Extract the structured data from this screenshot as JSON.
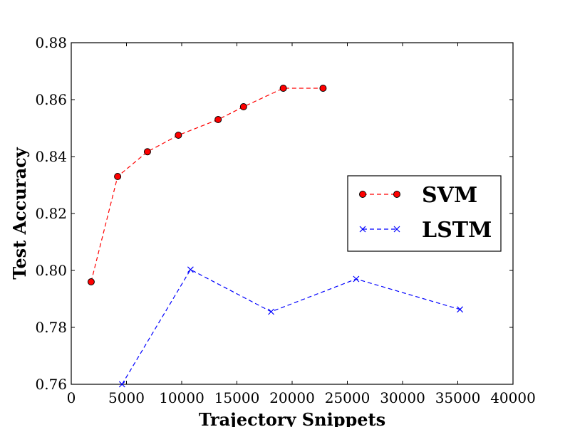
{
  "chart_data": {
    "type": "line",
    "xlabel": "Trajectory Snippets",
    "ylabel": "Test Accuracy",
    "xlim": [
      0,
      40000
    ],
    "ylim": [
      0.76,
      0.88
    ],
    "x_ticks": [
      "0",
      "5000",
      "10000",
      "15000",
      "20000",
      "25000",
      "30000",
      "35000",
      "40000"
    ],
    "y_ticks": [
      "0.76",
      "0.78",
      "0.80",
      "0.82",
      "0.84",
      "0.86",
      "0.88"
    ],
    "grid": false,
    "legend_position": "center-right",
    "series": [
      {
        "name": "SVM",
        "color": "#ff0000",
        "marker": "circle",
        "line_style": "dashed",
        "x": [
          1800,
          4200,
          6900,
          9700,
          13300,
          15600,
          19200,
          22800
        ],
        "y": [
          0.796,
          0.833,
          0.8417,
          0.8475,
          0.853,
          0.8575,
          0.864,
          0.864
        ]
      },
      {
        "name": "LSTM",
        "color": "#0000ff",
        "marker": "x",
        "line_style": "dashed",
        "x": [
          4600,
          10800,
          18100,
          25800,
          35200
        ],
        "y": [
          0.76,
          0.8003,
          0.7855,
          0.797,
          0.7863
        ]
      }
    ]
  }
}
